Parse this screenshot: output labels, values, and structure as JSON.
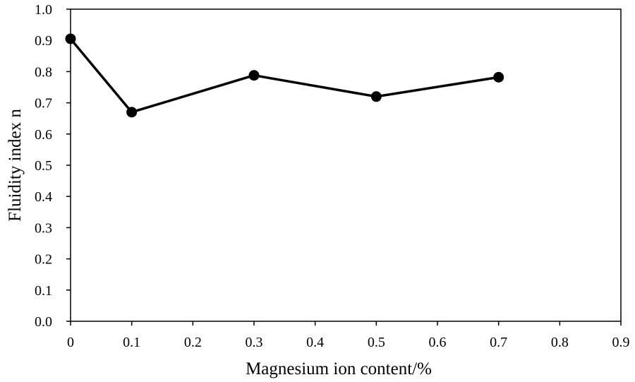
{
  "chart_data": {
    "type": "line",
    "xlabel": "Magnesium ion content/%",
    "ylabel": "Fluidity index n",
    "xlim": [
      0,
      0.9
    ],
    "ylim": [
      0,
      1.0
    ],
    "x_ticks": [
      "0",
      "0.1",
      "0.2",
      "0.3",
      "0.4",
      "0.5",
      "0.6",
      "0.7",
      "0.8",
      "0.9"
    ],
    "y_ticks": [
      "0.0",
      "0.1",
      "0.2",
      "0.3",
      "0.4",
      "0.5",
      "0.6",
      "0.7",
      "0.8",
      "0.9",
      "1.0"
    ],
    "grid": false,
    "series": [
      {
        "x": [
          0,
          0.1,
          0.3,
          0.5,
          0.7
        ],
        "y": [
          0.905,
          0.67,
          0.788,
          0.72,
          0.782
        ],
        "color": "#000000",
        "marker": "circle"
      }
    ]
  }
}
